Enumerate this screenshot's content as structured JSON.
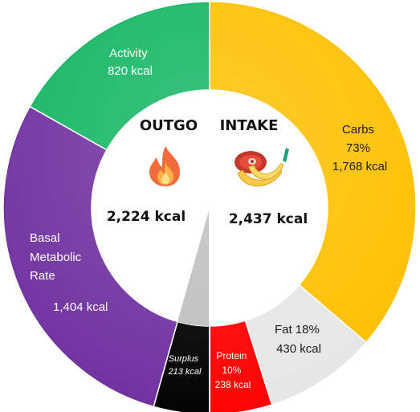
{
  "chart_data": {
    "type": "pie",
    "subtype": "split-donut",
    "halves": [
      {
        "title": "OUTGO",
        "total": "2,224 kcal",
        "icon": "fire-icon",
        "slices": [
          {
            "key": "activity",
            "lines": [
              "Activity",
              "820 kcal"
            ],
            "value": 820,
            "color": "#13b562"
          },
          {
            "key": "bmr",
            "lines": [
              "Basal",
              "Metabolic",
              "Rate",
              "",
              "1,404 kcal"
            ],
            "value": 1404,
            "color": "#7030a0"
          },
          {
            "key": "surplus",
            "lines": [
              "Surplus",
              "213 kcal"
            ],
            "value": 213,
            "color": "#000000"
          }
        ]
      },
      {
        "title": "INTAKE",
        "total": "2,437 kcal",
        "icon": "food-icon",
        "slices": [
          {
            "key": "carbs",
            "lines": [
              "Carbs",
              "73%",
              "1,768 kcal"
            ],
            "value": 1768,
            "percent": 73,
            "color": "#ffc000"
          },
          {
            "key": "fat",
            "lines": [
              "Fat 18%",
              "430 kcal"
            ],
            "value": 430,
            "percent": 18,
            "color": "#e6e6e6"
          },
          {
            "key": "protein",
            "lines": [
              "Protein",
              "10%",
              "238 kcal"
            ],
            "value": 238,
            "percent": 10,
            "color": "#ff0000"
          }
        ]
      }
    ],
    "inner_wedge_color": "#bfbfbf"
  }
}
